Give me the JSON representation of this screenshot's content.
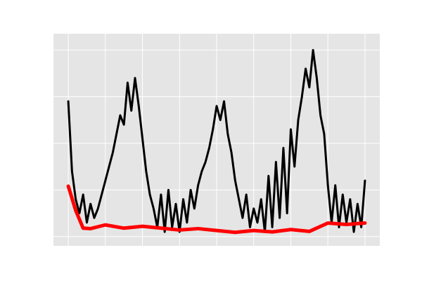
{
  "chart_data": {
    "type": "line",
    "xlim": [
      -0.4,
      8.4
    ],
    "xticks": [
      0,
      1,
      2,
      3,
      4,
      5,
      6,
      7,
      8
    ],
    "ylim": [
      -0.2,
      4.35
    ],
    "yticks": [
      0,
      1,
      2,
      3,
      4
    ],
    "grid": true,
    "background": "#e5e5e5",
    "grid_color": "#ffffff",
    "series": [
      {
        "color": "#000000",
        "width": 3,
        "x": [
          0,
          0.1,
          0.2,
          0.3,
          0.4,
          0.5,
          0.6,
          0.7,
          0.8,
          0.9,
          1,
          1.1,
          1.2,
          1.3,
          1.4,
          1.5,
          1.6,
          1.7,
          1.8,
          1.9,
          2,
          2.1,
          2.2,
          2.3,
          2.4,
          2.5,
          2.6,
          2.7,
          2.8,
          2.9,
          3,
          3.1,
          3.2,
          3.3,
          3.4,
          3.5,
          3.6,
          3.7,
          3.8,
          3.9,
          4,
          4.1,
          4.2,
          4.3,
          4.4,
          4.5,
          4.6,
          4.7,
          4.8,
          4.9,
          5,
          5.1,
          5.2,
          5.3,
          5.4,
          5.5,
          5.6,
          5.7,
          5.8,
          5.9,
          6,
          6.1,
          6.2,
          6.3,
          6.4,
          6.5,
          6.6,
          6.7,
          6.8,
          6.9,
          7,
          7.1,
          7.2,
          7.3,
          7.4,
          7.5,
          7.6,
          7.7,
          7.8,
          7.9,
          8
        ],
        "values": [
          2.9,
          1.4,
          0.8,
          0.5,
          0.9,
          0.3,
          0.7,
          0.4,
          0.6,
          0.9,
          1.2,
          1.5,
          1.8,
          2.2,
          2.6,
          2.4,
          3.3,
          2.7,
          3.4,
          2.8,
          2.1,
          1.4,
          0.9,
          0.6,
          0.2,
          0.9,
          0.1,
          1.0,
          0.2,
          0.7,
          0.1,
          0.8,
          0.3,
          1.0,
          0.6,
          1.1,
          1.4,
          1.6,
          1.9,
          2.3,
          2.8,
          2.5,
          2.9,
          2.2,
          1.8,
          1.2,
          0.8,
          0.4,
          0.9,
          0.2,
          0.6,
          0.3,
          0.8,
          0.1,
          1.3,
          0.2,
          1.6,
          0.4,
          1.9,
          0.5,
          2.3,
          1.5,
          2.5,
          3.0,
          3.6,
          3.2,
          4.0,
          3.4,
          2.6,
          2.2,
          1.1,
          0.3,
          1.1,
          0.2,
          0.9,
          0.3,
          0.8,
          0.1,
          0.7,
          0.2,
          1.2
        ]
      },
      {
        "color": "#ff0000",
        "width": 5,
        "x": [
          0,
          0.2,
          0.4,
          0.6,
          1,
          1.5,
          2,
          2.5,
          3,
          3.5,
          4,
          4.5,
          5,
          5.5,
          6,
          6.5,
          7,
          7.5,
          8
        ],
        "values": [
          1.08,
          0.56,
          0.18,
          0.17,
          0.25,
          0.18,
          0.22,
          0.18,
          0.14,
          0.17,
          0.13,
          0.09,
          0.13,
          0.1,
          0.15,
          0.11,
          0.29,
          0.26,
          0.29
        ]
      }
    ]
  }
}
